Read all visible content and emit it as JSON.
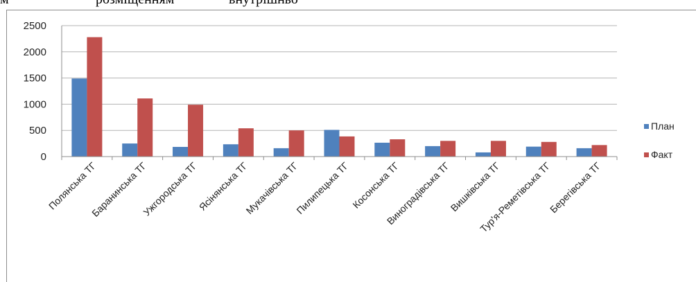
{
  "page_header": {
    "fragments": [
      "м",
      "розміщенням",
      "внутрішньо"
    ]
  },
  "chart_data": {
    "type": "bar",
    "title": "",
    "xlabel": "",
    "ylabel": "",
    "ylim": [
      0,
      2500
    ],
    "yticks": [
      0,
      500,
      1000,
      1500,
      2000,
      2500
    ],
    "grid": true,
    "legend_position": "right",
    "categories": [
      "Полянська ТГ",
      "Баранинська ТГ",
      "Ужгородська ТГ",
      "Ясінянська ТГ",
      "Мукачівська ТГ",
      "Пилипецька ТГ",
      "Косонська ТГ",
      "Виноградівська ТГ",
      "Вишківська ТГ",
      "Тур'я-Реметівська ТГ",
      "Берегівська ТГ"
    ],
    "series": [
      {
        "name": "План",
        "color": "#4f81bd",
        "values": [
          1490,
          250,
          185,
          235,
          160,
          510,
          265,
          200,
          80,
          190,
          160
        ]
      },
      {
        "name": "Факт",
        "color": "#c0504d",
        "values": [
          2280,
          1110,
          990,
          540,
          500,
          385,
          330,
          300,
          300,
          280,
          220
        ]
      }
    ]
  }
}
